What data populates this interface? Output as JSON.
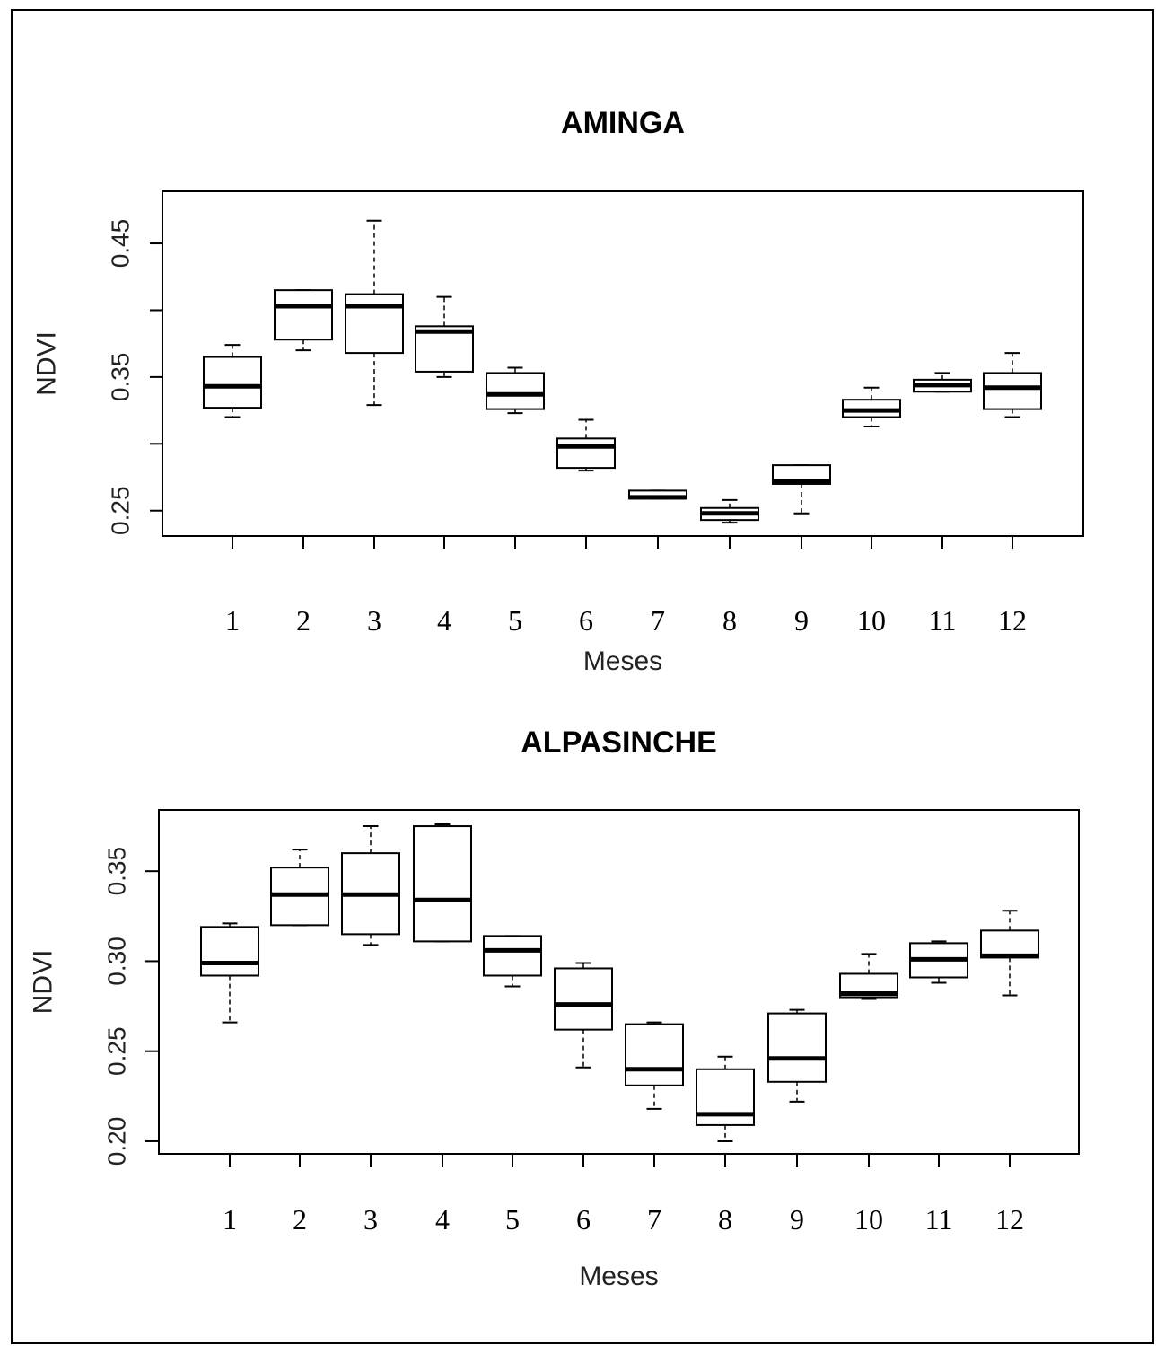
{
  "chart_data": [
    {
      "type": "boxplot",
      "title": "AMINGA",
      "xlabel": "Meses",
      "ylabel": "NDVI",
      "categories": [
        "1",
        "2",
        "3",
        "4",
        "5",
        "6",
        "7",
        "8",
        "9",
        "10",
        "11",
        "12"
      ],
      "ylim": [
        0.231,
        0.489
      ],
      "yticks": [
        0.25,
        0.3,
        0.35,
        0.4,
        0.45
      ],
      "ytick_labels": [
        "0.25",
        "",
        "0.35",
        "",
        "0.45"
      ],
      "boxes": [
        {
          "min": 0.32,
          "q1": 0.327,
          "median": 0.343,
          "q3": 0.365,
          "max": 0.374
        },
        {
          "min": 0.37,
          "q1": 0.378,
          "median": 0.403,
          "q3": 0.415,
          "max": 0.415
        },
        {
          "min": 0.329,
          "q1": 0.368,
          "median": 0.403,
          "q3": 0.412,
          "max": 0.467
        },
        {
          "min": 0.35,
          "q1": 0.354,
          "median": 0.384,
          "q3": 0.388,
          "max": 0.41
        },
        {
          "min": 0.323,
          "q1": 0.326,
          "median": 0.337,
          "q3": 0.353,
          "max": 0.357
        },
        {
          "min": 0.28,
          "q1": 0.282,
          "median": 0.298,
          "q3": 0.304,
          "max": 0.318
        },
        {
          "min": 0.259,
          "q1": 0.259,
          "median": 0.26,
          "q3": 0.265,
          "max": 0.265
        },
        {
          "min": 0.241,
          "q1": 0.243,
          "median": 0.248,
          "q3": 0.252,
          "max": 0.258
        },
        {
          "min": 0.248,
          "q1": 0.27,
          "median": 0.272,
          "q3": 0.284,
          "max": 0.284
        },
        {
          "min": 0.313,
          "q1": 0.32,
          "median": 0.325,
          "q3": 0.333,
          "max": 0.342
        },
        {
          "min": 0.339,
          "q1": 0.339,
          "median": 0.344,
          "q3": 0.348,
          "max": 0.353
        },
        {
          "min": 0.32,
          "q1": 0.326,
          "median": 0.342,
          "q3": 0.353,
          "max": 0.368
        }
      ]
    },
    {
      "type": "boxplot",
      "title": "ALPASINCHE",
      "xlabel": "Meses",
      "ylabel": "NDVI",
      "categories": [
        "1",
        "2",
        "3",
        "4",
        "5",
        "6",
        "7",
        "8",
        "9",
        "10",
        "11",
        "12"
      ],
      "ylim": [
        0.193,
        0.384
      ],
      "yticks": [
        0.2,
        0.25,
        0.3,
        0.35
      ],
      "ytick_labels": [
        "0.20",
        "0.25",
        "0.30",
        "0.35"
      ],
      "boxes": [
        {
          "min": 0.266,
          "q1": 0.292,
          "median": 0.299,
          "q3": 0.319,
          "max": 0.321
        },
        {
          "min": 0.32,
          "q1": 0.32,
          "median": 0.337,
          "q3": 0.352,
          "max": 0.362
        },
        {
          "min": 0.309,
          "q1": 0.315,
          "median": 0.337,
          "q3": 0.36,
          "max": 0.375
        },
        {
          "min": 0.311,
          "q1": 0.311,
          "median": 0.334,
          "q3": 0.375,
          "max": 0.376
        },
        {
          "min": 0.286,
          "q1": 0.292,
          "median": 0.306,
          "q3": 0.314,
          "max": 0.314
        },
        {
          "min": 0.241,
          "q1": 0.262,
          "median": 0.276,
          "q3": 0.296,
          "max": 0.299
        },
        {
          "min": 0.218,
          "q1": 0.231,
          "median": 0.24,
          "q3": 0.265,
          "max": 0.266
        },
        {
          "min": 0.2,
          "q1": 0.209,
          "median": 0.215,
          "q3": 0.24,
          "max": 0.247
        },
        {
          "min": 0.222,
          "q1": 0.233,
          "median": 0.246,
          "q3": 0.271,
          "max": 0.273
        },
        {
          "min": 0.279,
          "q1": 0.28,
          "median": 0.282,
          "q3": 0.293,
          "max": 0.304
        },
        {
          "min": 0.288,
          "q1": 0.291,
          "median": 0.301,
          "q3": 0.31,
          "max": 0.311
        },
        {
          "min": 0.281,
          "q1": 0.302,
          "median": 0.303,
          "q3": 0.317,
          "max": 0.328
        }
      ]
    }
  ]
}
